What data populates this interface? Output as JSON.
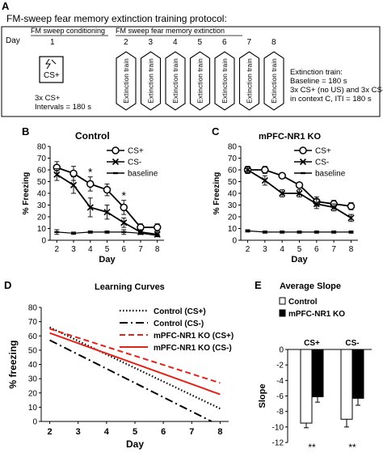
{
  "panel_a": {
    "letter": "A",
    "title": "FM-sweep fear memory extinction training protocol:",
    "day_label": "Day",
    "conditioning": {
      "header": "FM sweep conditioning",
      "day": "1",
      "box_label": "CS+",
      "note_line1": "3x CS+",
      "note_line2": "Intervals = 180 s"
    },
    "extinction": {
      "header": "FM sweep fear memory extinction",
      "days": [
        "2",
        "3",
        "4",
        "5",
        "6",
        "7",
        "8"
      ],
      "session_label": "Extinction train"
    },
    "info_lines": [
      "Extinction train:",
      "Baseline = 180 s",
      "3x CS+ (no US) and 3x CS-",
      "in context C, ITI = 180 s"
    ]
  },
  "panel_b": {
    "letter": "B",
    "title": "Control"
  },
  "panel_c": {
    "letter": "C",
    "title": "mPFC-NR1 KO"
  },
  "panel_d": {
    "letter": "D",
    "title": "Learning Curves"
  },
  "panel_e": {
    "letter": "E",
    "title": "Average Slope"
  },
  "colors": {
    "black": "#000000",
    "red": "#e2231a",
    "grid": "#000000"
  },
  "chart_data": [
    {
      "id": "B",
      "type": "line",
      "title": "Control",
      "xlabel": "Day",
      "ylabel": "% Freezing",
      "x": [
        2,
        3,
        4,
        5,
        6,
        7,
        8
      ],
      "xlim": [
        1.6,
        8.4
      ],
      "ylim": [
        0,
        80
      ],
      "yticks": [
        0,
        10,
        20,
        30,
        40,
        50,
        60,
        70,
        80
      ],
      "legend": "top-right",
      "series": [
        {
          "name": "CS+",
          "marker": "circle",
          "values": [
            62,
            57,
            48,
            43,
            28,
            11,
            11
          ],
          "errors": [
            5,
            6,
            6,
            5,
            6,
            3,
            3
          ]
        },
        {
          "name": "CS-",
          "marker": "x",
          "values": [
            56,
            47,
            28,
            24,
            15,
            7,
            5
          ],
          "errors": [
            5,
            7,
            8,
            6,
            4,
            2,
            2
          ]
        },
        {
          "name": "baseline",
          "marker": "dash",
          "values": [
            7,
            6,
            7,
            7,
            7,
            6,
            4
          ],
          "errors": [
            2,
            1,
            1,
            1,
            2,
            1,
            1
          ]
        }
      ],
      "annotations": [
        {
          "x": 4,
          "text": "*"
        },
        {
          "x": 6,
          "text": "*"
        }
      ]
    },
    {
      "id": "C",
      "type": "line",
      "title": "mPFC-NR1 KO",
      "xlabel": "Day",
      "ylabel": "% Freezing",
      "x": [
        2,
        3,
        4,
        5,
        6,
        7,
        8
      ],
      "xlim": [
        1.6,
        8.4
      ],
      "ylim": [
        0,
        80
      ],
      "yticks": [
        0,
        10,
        20,
        30,
        40,
        50,
        60,
        70,
        80
      ],
      "legend": "top-right",
      "series": [
        {
          "name": "CS+",
          "marker": "circle",
          "values": [
            60,
            60,
            55,
            47,
            33,
            31,
            29
          ],
          "errors": [
            3,
            3,
            2,
            2,
            4,
            3,
            3
          ]
        },
        {
          "name": "CS-",
          "marker": "x",
          "values": [
            60,
            51,
            40,
            40,
            31,
            28,
            19
          ],
          "errors": [
            3,
            4,
            3,
            3,
            4,
            3,
            3
          ]
        },
        {
          "name": "baseline",
          "marker": "dash",
          "values": [
            8,
            7,
            7,
            7,
            7,
            7,
            7
          ],
          "errors": [
            1,
            1,
            1,
            1,
            1,
            1,
            1
          ]
        }
      ]
    },
    {
      "id": "D",
      "type": "line",
      "title": "Learning Curves",
      "xlabel": "Day",
      "ylabel": "% freezing",
      "xlim": [
        1.7,
        8.3
      ],
      "ylim": [
        0,
        80
      ],
      "xticks": [
        2,
        3,
        4,
        5,
        6,
        7,
        8
      ],
      "yticks": [
        0,
        10,
        20,
        30,
        40,
        50,
        60,
        70,
        80
      ],
      "legend": "top-right",
      "series": [
        {
          "name": "Control (CS+)",
          "style": "dotted",
          "color": "#000000",
          "x": [
            2,
            8
          ],
          "values": [
            66,
            9
          ]
        },
        {
          "name": "Control (CS-)",
          "style": "dashdot",
          "color": "#000000",
          "x": [
            2,
            7.7
          ],
          "values": [
            57,
            0
          ]
        },
        {
          "name": "mPFC-NR1 KO (CS+)",
          "style": "dashed",
          "color": "#e2231a",
          "x": [
            2,
            8
          ],
          "values": [
            65,
            27
          ]
        },
        {
          "name": "mPFC-NR1 KO (CS-)",
          "style": "solid",
          "color": "#e2231a",
          "x": [
            2,
            8
          ],
          "values": [
            62,
            19
          ]
        }
      ]
    },
    {
      "id": "E",
      "type": "bar",
      "title": "Average Slope",
      "ylabel": "Slope",
      "categories": [
        "CS+",
        "CS-"
      ],
      "ylim": [
        -12,
        0
      ],
      "yticks": [
        0,
        -2,
        -4,
        -6,
        -8,
        -10,
        -12
      ],
      "legend": "top-left",
      "series": [
        {
          "name": "Control",
          "color": "#ffffff",
          "values": [
            -9.5,
            -9.0
          ],
          "errors": [
            0.6,
            1.0
          ]
        },
        {
          "name": "mPFC-NR1 KO",
          "color": "#000000",
          "values": [
            -6.1,
            -6.3
          ],
          "errors": [
            0.7,
            0.9
          ]
        }
      ],
      "annotations": [
        {
          "category": "CS+",
          "text": "**"
        },
        {
          "category": "CS-",
          "text": "**"
        }
      ]
    }
  ]
}
